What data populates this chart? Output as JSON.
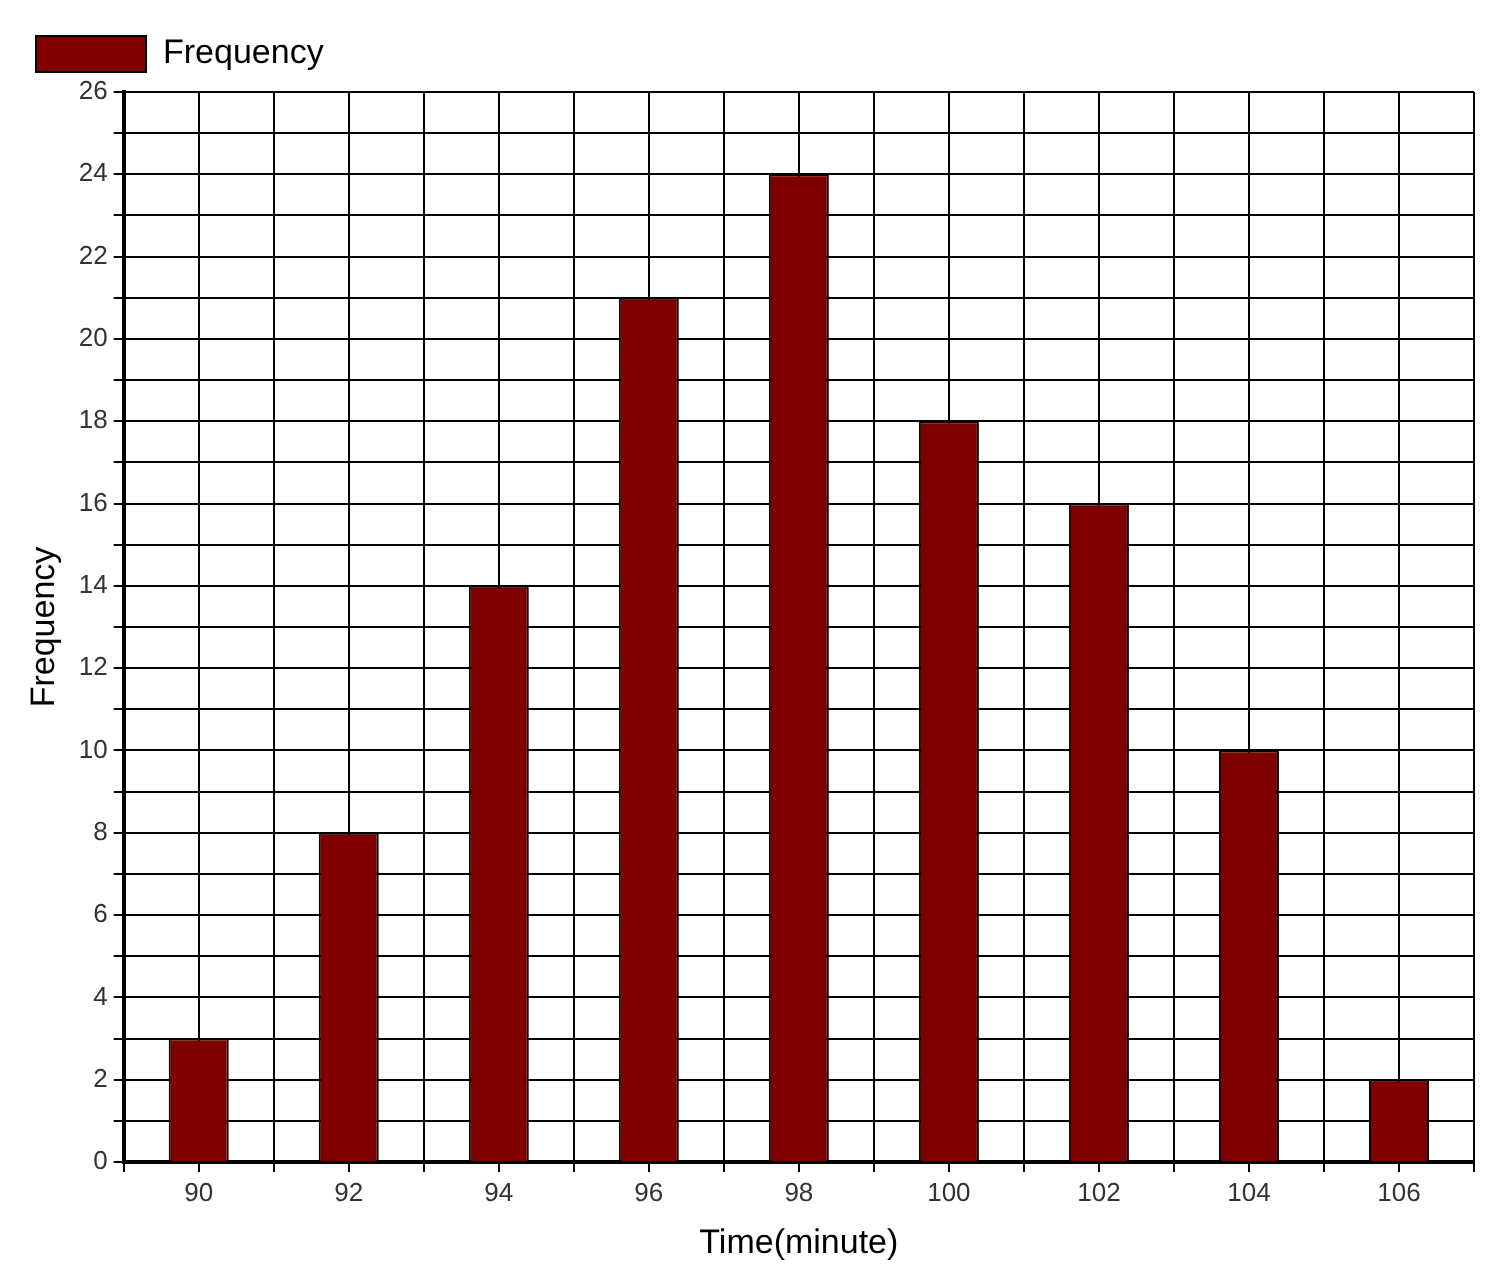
{
  "chart_data": {
    "type": "histogram",
    "xlabel": "Time(minute)",
    "ylabel": "Frequency",
    "bins": [
      89,
      91,
      93,
      95,
      97,
      99,
      101,
      103,
      105,
      107
    ],
    "series": [
      {
        "name": "Frequency",
        "color": "#800000",
        "values": [
          3,
          8,
          14,
          21,
          24,
          18,
          16,
          10,
          2
        ]
      }
    ],
    "xlim": [
      89,
      107
    ],
    "xticks": [
      {
        "value": 89,
        "label": null
      },
      90,
      {
        "value": 91,
        "label": null
      },
      92,
      {
        "value": 93,
        "label": null
      },
      94,
      {
        "value": 95,
        "label": null
      },
      96,
      {
        "value": 97,
        "label": null
      },
      98,
      {
        "value": 99,
        "label": null
      },
      100,
      {
        "value": 101,
        "label": null
      },
      102,
      {
        "value": 103,
        "label": null
      },
      104,
      {
        "value": 105,
        "label": null
      },
      106,
      {
        "value": 107,
        "label": null
      }
    ],
    "ylim": [
      0,
      26
    ],
    "yticks": [
      0,
      {
        "value": 1,
        "label": null
      },
      2,
      {
        "value": 3,
        "label": null
      },
      4,
      {
        "value": 5,
        "label": null
      },
      6,
      {
        "value": 7,
        "label": null
      },
      8,
      {
        "value": 9,
        "label": null
      },
      10,
      {
        "value": 11,
        "label": null
      },
      12,
      {
        "value": 13,
        "label": null
      },
      14,
      {
        "value": 15,
        "label": null
      },
      16,
      {
        "value": 17,
        "label": null
      },
      18,
      {
        "value": 19,
        "label": null
      },
      20,
      {
        "value": 21,
        "label": null
      },
      22,
      {
        "value": 23,
        "label": null
      },
      24,
      {
        "value": 25,
        "label": null
      },
      26
    ],
    "grid": true,
    "legend": "top left"
  }
}
